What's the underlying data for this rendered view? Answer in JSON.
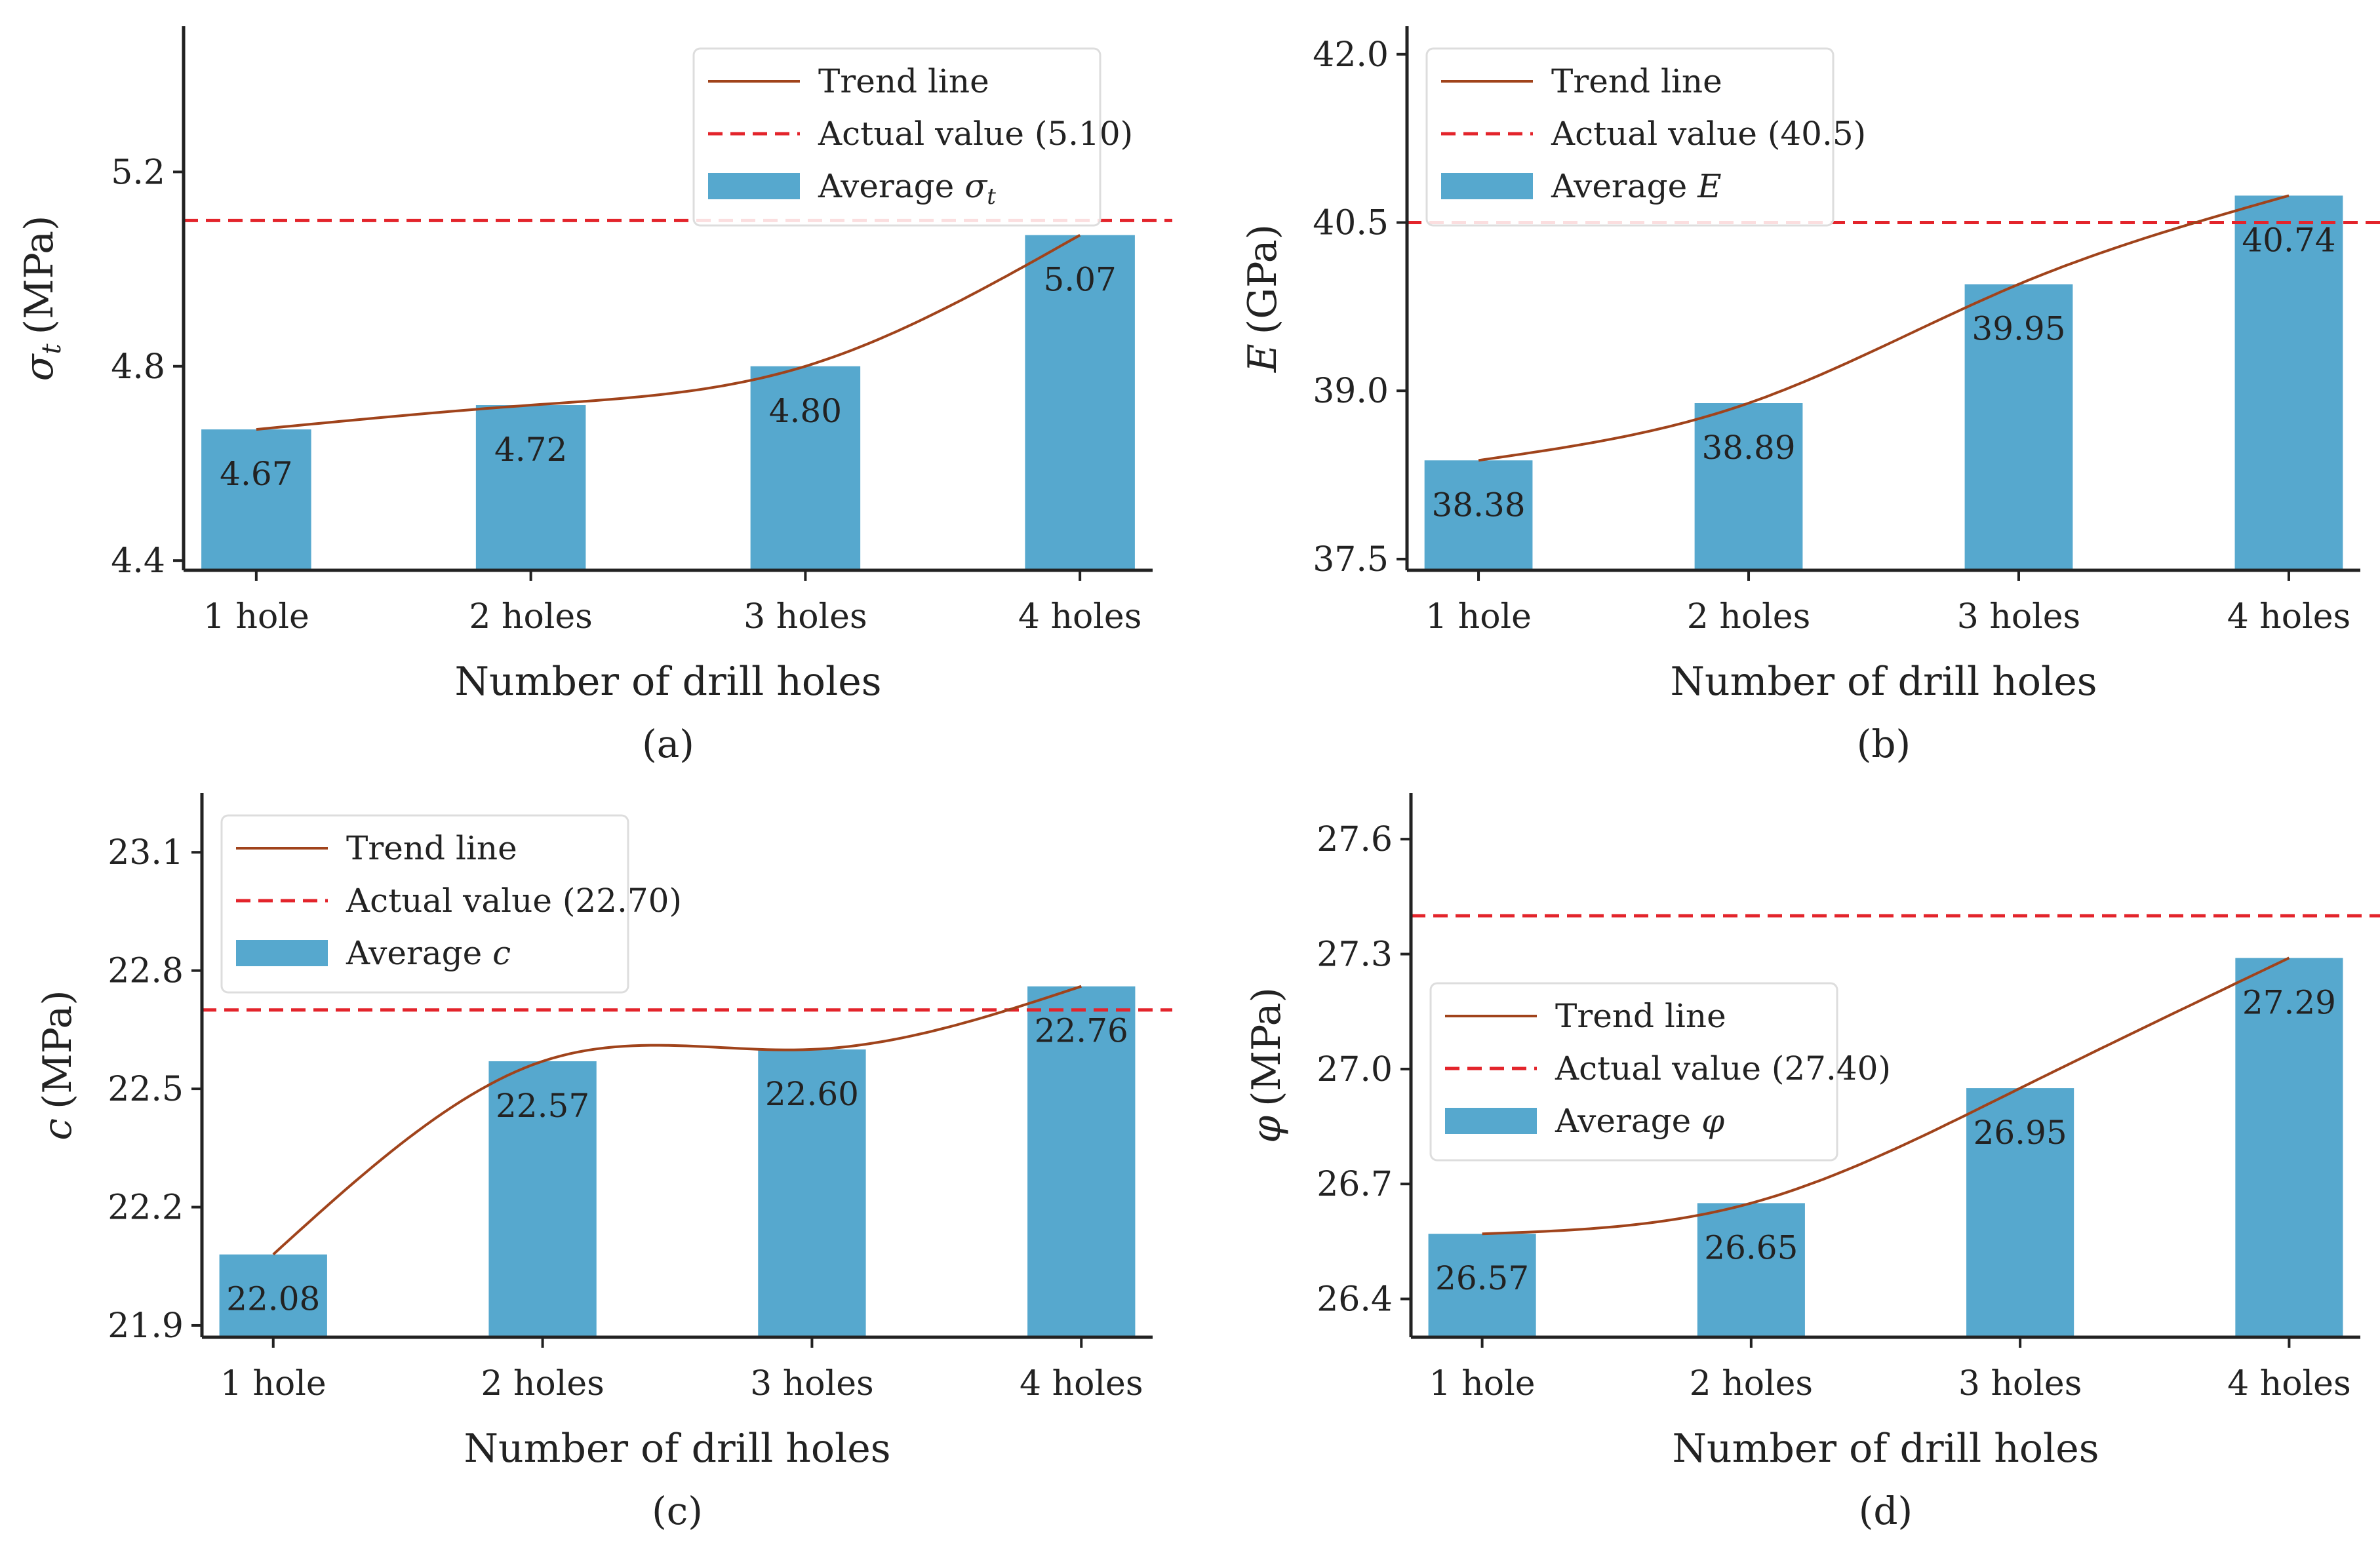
{
  "figure": {
    "colors": {
      "bar": "#56a8ce",
      "trend": "#a0431b",
      "actual": "#e3242b",
      "axis": "#222222",
      "legend_border": "#dddddd"
    }
  },
  "chart_data": [
    {
      "type": "bar",
      "panel": "a",
      "caption": "(a)",
      "categories": [
        "1 hole",
        "2 holes",
        "3 holes",
        "4 holes"
      ],
      "values": [
        4.67,
        4.72,
        4.8,
        5.07
      ],
      "value_labels": [
        "4.67",
        "4.72",
        "4.80",
        "5.07"
      ],
      "xlabel": "Number of drill holes",
      "ylabel_symbol": "σ",
      "ylabel_sub": "t",
      "ylabel_unit": "(MPa)",
      "ylim": [
        4.38,
        5.5
      ],
      "yticks": [
        4.4,
        4.8,
        5.2
      ],
      "ytick_labels": [
        "4.4",
        "4.8",
        "5.2"
      ],
      "actual_value": 5.1,
      "trend": [
        4.67,
        4.72,
        4.8,
        5.07
      ],
      "legend": {
        "position": "top-right",
        "trend": "Trend line",
        "actual": "Actual value (5.10)",
        "average_prefix": "Average ",
        "average_symbol": "σ",
        "average_sub": "t"
      }
    },
    {
      "type": "bar",
      "panel": "b",
      "caption": "(b)",
      "categories": [
        "1 hole",
        "2 holes",
        "3 holes",
        "4 holes"
      ],
      "values": [
        38.38,
        38.89,
        39.95,
        40.74
      ],
      "value_labels": [
        "38.38",
        "38.89",
        "39.95",
        "40.74"
      ],
      "xlabel": "Number of drill holes",
      "ylabel_symbol": "E",
      "ylabel_sub": "",
      "ylabel_unit": "(GPa)",
      "ylim": [
        37.4,
        42.25
      ],
      "yticks": [
        37.5,
        39.0,
        40.5,
        42.0
      ],
      "ytick_labels": [
        "37.5",
        "39.0",
        "40.5",
        "42.0"
      ],
      "actual_value": 40.5,
      "trend": [
        38.38,
        38.89,
        39.95,
        40.74
      ],
      "legend": {
        "position": "top-left",
        "trend": "Trend line",
        "actual": "Actual value (40.5)",
        "average_prefix": "Average ",
        "average_symbol": "E",
        "average_sub": ""
      }
    },
    {
      "type": "bar",
      "panel": "c",
      "caption": "(c)",
      "categories": [
        "1 hole",
        "2 holes",
        "3 holes",
        "4 holes"
      ],
      "values": [
        22.08,
        22.57,
        22.6,
        22.76
      ],
      "value_labels": [
        "22.08",
        "22.57",
        "22.60",
        "22.76"
      ],
      "xlabel": "Number of drill holes",
      "ylabel_symbol": "c",
      "ylabel_sub": "",
      "ylabel_unit": "(MPa)",
      "ylim": [
        21.87,
        23.25
      ],
      "yticks": [
        21.9,
        22.2,
        22.5,
        22.8,
        23.1
      ],
      "ytick_labels": [
        "21.9",
        "22.2",
        "22.5",
        "22.8",
        "23.1"
      ],
      "actual_value": 22.7,
      "trend": [
        22.08,
        22.57,
        22.6,
        22.76
      ],
      "legend": {
        "position": "top-left",
        "trend": "Trend line",
        "actual": "Actual value (22.70)",
        "average_prefix": "Average ",
        "average_symbol": "c",
        "average_sub": ""
      }
    },
    {
      "type": "bar",
      "panel": "d",
      "caption": "(d)",
      "categories": [
        "1 hole",
        "2 holes",
        "3 holes",
        "4 holes"
      ],
      "values": [
        26.57,
        26.65,
        26.95,
        27.29
      ],
      "value_labels": [
        "26.57",
        "26.65",
        "26.95",
        "27.29"
      ],
      "xlabel": "Number of drill holes",
      "ylabel_symbol": "φ",
      "ylabel_sub": "",
      "ylabel_unit": "(MPa)",
      "ylim": [
        26.3,
        27.72
      ],
      "yticks": [
        26.4,
        26.7,
        27.0,
        27.3,
        27.6
      ],
      "ytick_labels": [
        "26.4",
        "26.7",
        "27.0",
        "27.3",
        "27.6"
      ],
      "actual_value": 27.4,
      "trend": [
        26.57,
        26.65,
        26.95,
        27.29
      ],
      "legend": {
        "position": "center-left",
        "trend": "Trend line",
        "actual": "Actual value (27.40)",
        "average_prefix": "Average ",
        "average_symbol": "φ",
        "average_sub": ""
      }
    }
  ]
}
